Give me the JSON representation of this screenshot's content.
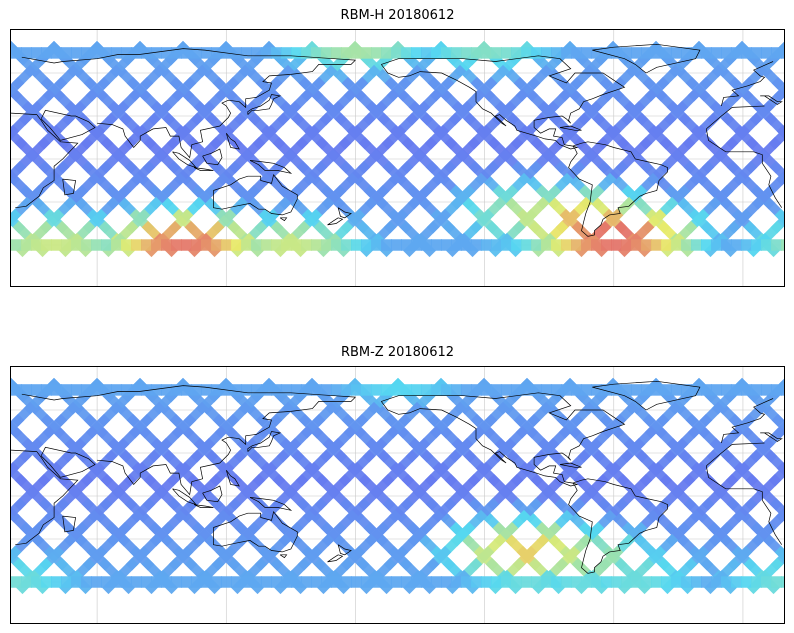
{
  "maps": [
    {
      "id": "h",
      "title": "RBM-H 20180612",
      "hot_regions": [
        {
          "lon": 100,
          "lat": -60,
          "level": 0.95
        },
        {
          "lon": 40,
          "lat": -60,
          "level": 0.6
        },
        {
          "lon": 150,
          "lat": -62,
          "level": 0.6
        },
        {
          "lon": 300,
          "lat": -55,
          "level": 1.0
        },
        {
          "lon": 285,
          "lat": -45,
          "level": 0.8
        },
        {
          "lon": 265,
          "lat": -40,
          "level": 0.6
        },
        {
          "lon": 180,
          "lat": 80,
          "level": 0.55
        },
        {
          "lon": 240,
          "lat": 78,
          "level": 0.45
        }
      ]
    },
    {
      "id": "z",
      "title": "RBM-Z 20180612",
      "hot_regions": [
        {
          "lon": 260,
          "lat": -40,
          "level": 0.75
        },
        {
          "lon": 285,
          "lat": -45,
          "level": 0.55
        },
        {
          "lon": 310,
          "lat": -55,
          "level": 0.4
        },
        {
          "lon": 20,
          "lat": -60,
          "level": 0.4
        },
        {
          "lon": 200,
          "lat": 80,
          "level": 0.35
        }
      ]
    }
  ],
  "colors": {
    "low": "#6a6af0",
    "mid": "#55d8f0",
    "warm": "#e8ec6a",
    "high": "#e4646a",
    "coastline": "#000000",
    "grid": "#c8c8c8"
  }
}
